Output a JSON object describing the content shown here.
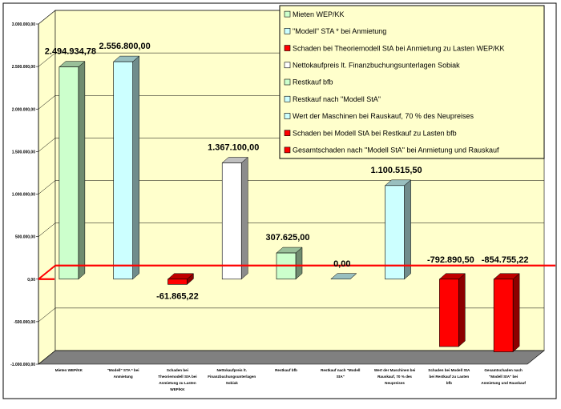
{
  "chart_data": {
    "type": "bar",
    "title": "",
    "xlabel": "",
    "ylabel": "",
    "ylim": [
      -1000000,
      3000000
    ],
    "yticks": [
      -1000000,
      -500000,
      0,
      500000,
      1000000,
      1500000,
      2000000,
      2500000,
      3000000
    ],
    "ytick_labels": [
      "-1.000.000,00",
      "-500.000,00",
      "0,00",
      "500.000,00",
      "1.000.000,00",
      "1.500.000,00",
      "2.000.000,00",
      "2.500.000,00",
      "3.000.000,00"
    ],
    "grid": true,
    "legend_position": "top-right",
    "reference_line_value": 0,
    "categories": [
      "Mieten WEP/KK",
      "\"Modell\" STA * bei Anmietung",
      "Schaden bei Theoriemodell StA bei Anmietung zu Lasten WEP/KK",
      "Nettokaufpreis lt. Finanzbuchungsunterlagen Sobiak",
      "Restkauf bfb",
      "Restkauf nach \"Modell StA\"",
      "Wert der Maschinen bei Rauskauf, 70 % des Neupreises",
      "Schaden bei Modell StA bei Restkauf zu Lasten bfb",
      "Gesamtschaden nach \"Modell StA\" bei Anmietung und Rauskauf"
    ],
    "values": [
      2494934.78,
      2556800.0,
      -61865.22,
      1367100.0,
      307625.0,
      0.0,
      1100515.5,
      -792890.5,
      -854755.22
    ],
    "value_labels": [
      "2.494.934,78",
      "2.556.800,00",
      "-61.865,22",
      "1.367.100,00",
      "307.625,00",
      "0,00",
      "1.100.515,50",
      "-792.890,50",
      "-854.755,22"
    ],
    "colors": [
      "#ccffcc",
      "#ccffff",
      "#ff0000",
      "#ffffff",
      "#ccffcc",
      "#ccffff",
      "#ccffff",
      "#ff0000",
      "#ff0000"
    ],
    "legend": [
      {
        "label": "Mieten WEP/KK",
        "color": "#ccffcc"
      },
      {
        "label": "\"Modell\" STA * bei Anmietung",
        "color": "#ccffff"
      },
      {
        "label": "Schaden bei Theoriemodell StA bei Anmietung zu Lasten WEP/KK",
        "color": "#ff0000"
      },
      {
        "label": "Nettokaufpreis lt. Finanzbuchungsunterlagen Sobiak",
        "color": "#ffffff"
      },
      {
        "label": "Restkauf bfb",
        "color": "#ccffcc"
      },
      {
        "label": "Restkauf nach \"Modell StA\"",
        "color": "#ccffff"
      },
      {
        "label": "Wert der Maschinen bei Rauskauf, 70 % des Neupreises",
        "color": "#ccffff"
      },
      {
        "label": "Schaden bei Modell StA bei Restkauf zu Lasten bfb",
        "color": "#ff0000"
      },
      {
        "label": "Gesamtschaden nach \"Modell StA\" bei Anmietung und Rauskauf",
        "color": "#ff0000"
      }
    ],
    "style": {
      "wall_color": "#ffffcc",
      "floor_color": "#808080",
      "reference_line_color": "#ff0000",
      "legend_background": "#ffffcc"
    }
  }
}
